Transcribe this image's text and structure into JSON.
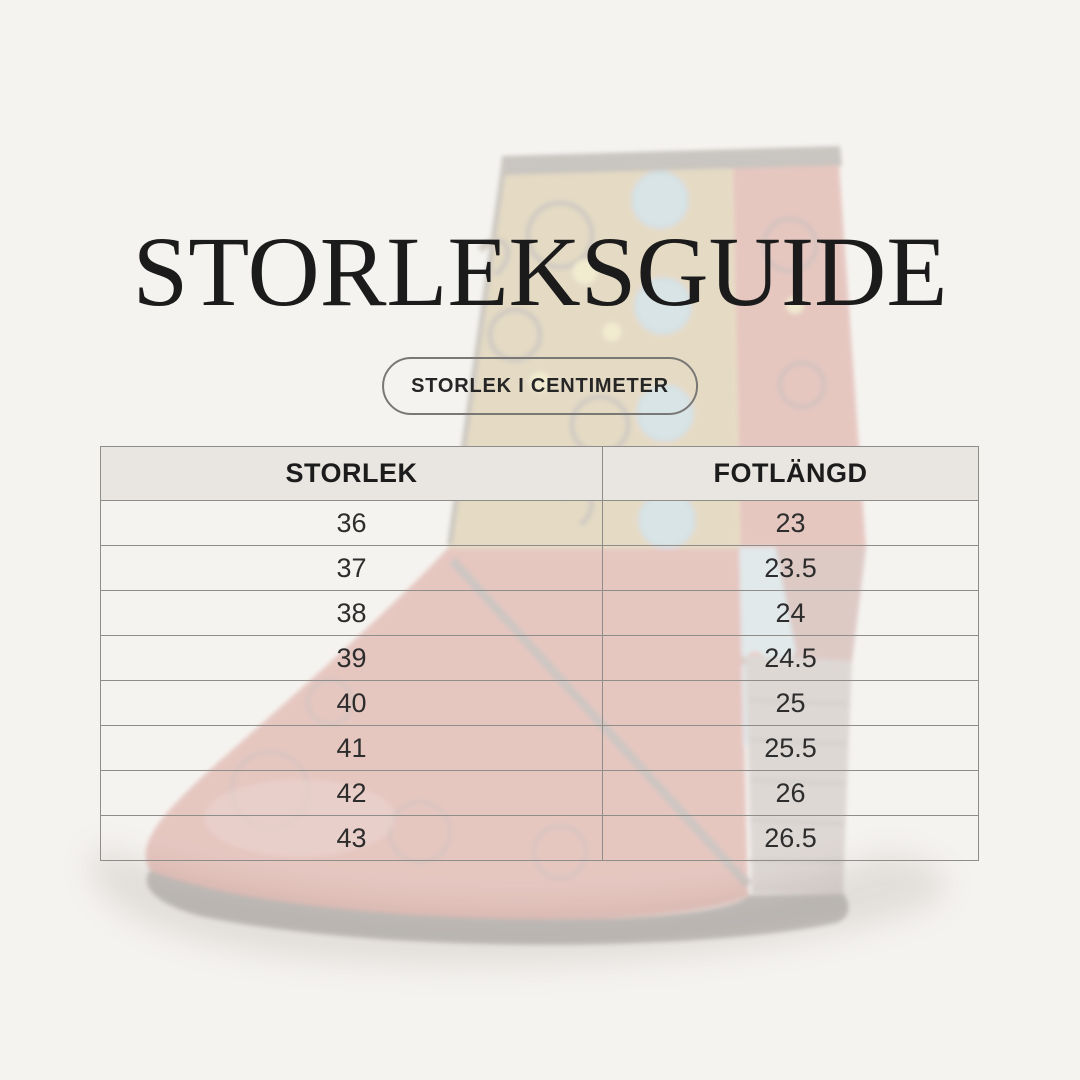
{
  "title": "STORLEKSGUIDE",
  "badge": {
    "label": "STORLEK I CENTIMETER"
  },
  "table": {
    "headers": [
      "STORLEK",
      "FOTLÄNGD"
    ],
    "rows": [
      [
        "36",
        "23"
      ],
      [
        "37",
        "23.5"
      ],
      [
        "38",
        "24"
      ],
      [
        "39",
        "24.5"
      ],
      [
        "40",
        "25"
      ],
      [
        "41",
        "25.5"
      ],
      [
        "42",
        "26"
      ],
      [
        "43",
        "26.5"
      ]
    ]
  },
  "colors": {
    "page_bg": "#f5f3f0",
    "header_bg": "#e9e6e1",
    "table_border": "#8f8d89",
    "title_text": "#1b1b1b",
    "body_text": "#2d2d2d",
    "badge_border": "#7a7875",
    "boot_tan": "#b18a2e",
    "boot_red": "#b32d1c",
    "boot_button_blue": "#74b2c6",
    "boot_heel_gray": "#8f7c78",
    "boot_sole": "#2f2722"
  }
}
